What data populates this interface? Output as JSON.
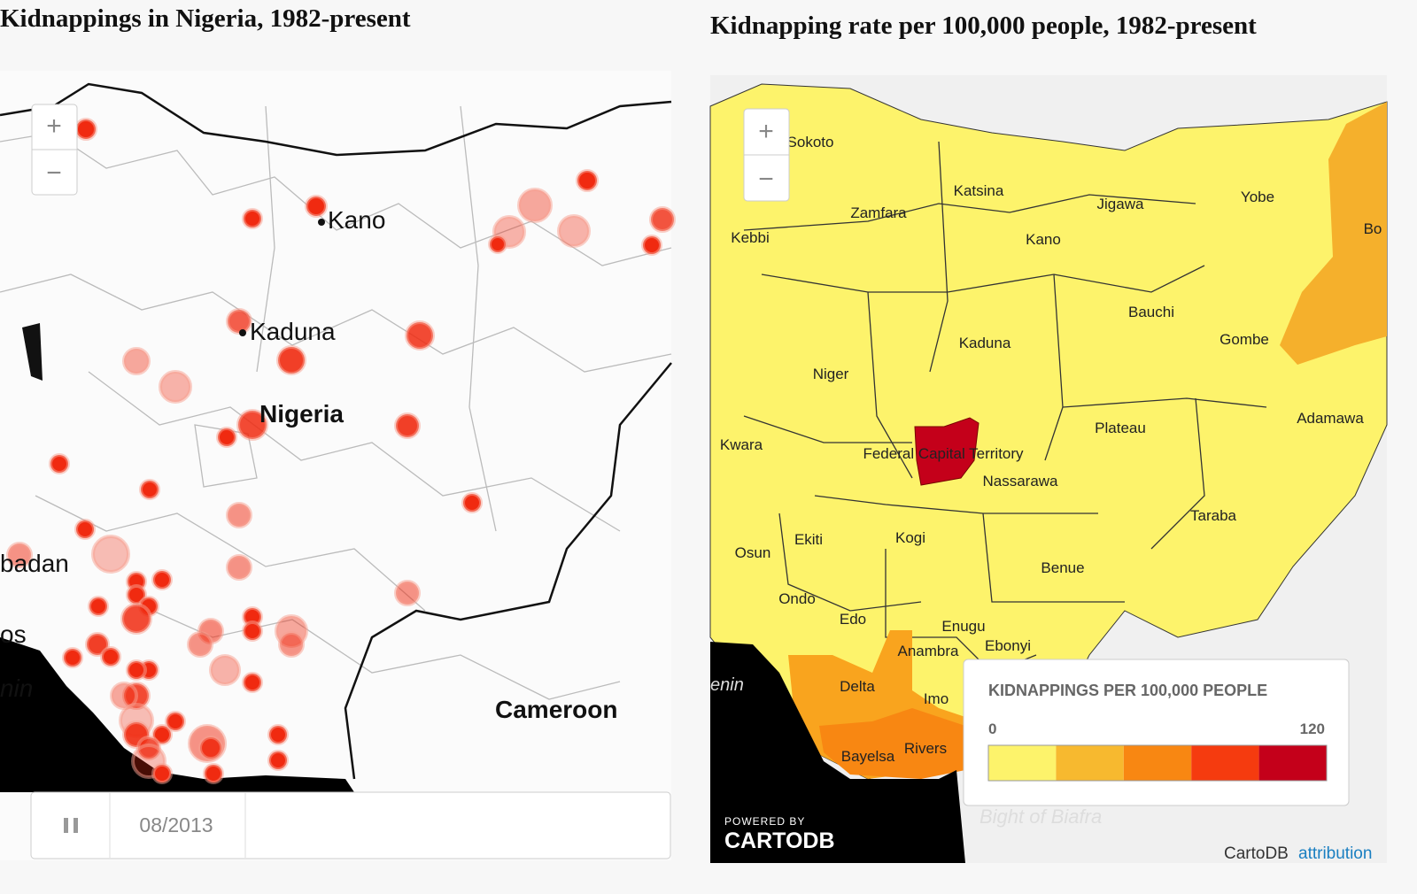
{
  "left_map": {
    "title": "Kidnappings in Nigeria, 1982-present",
    "places": [
      "Kano",
      "Kaduna",
      "Nigeria",
      "badan",
      "os",
      "nin",
      "Cameroon"
    ],
    "zoom_in": "+",
    "zoom_out": "−",
    "date": "08/2013"
  },
  "right_map": {
    "title": "Kidnapping rate per 100,000 people, 1982-present",
    "states": [
      "Sokoto",
      "Katsina",
      "Zamfara",
      "Jigawa",
      "Yobe",
      "Kebbi",
      "Kano",
      "Bo",
      "Bauchi",
      "Gombe",
      "Kaduna",
      "Niger",
      "Adamawa",
      "Plateau",
      "Kwara",
      "Federal Capital Territory",
      "Nassarawa",
      "Taraba",
      "Ekiti",
      "Kogi",
      "Osun",
      "Benue",
      "Ondo",
      "Edo",
      "Enugu",
      "Anambra",
      "Ebonyi",
      "Delta",
      "Imo",
      "Bayelsa",
      "Rivers"
    ],
    "sea_labels": [
      "enin",
      "Bight of Biafra"
    ],
    "zoom_in": "+",
    "zoom_out": "−",
    "legend": {
      "title": "KIDNAPPINGS PER 100,000 PEOPLE",
      "min": 0,
      "max": 120,
      "colors": [
        "#fdf36b",
        "#f7b92f",
        "#f88712",
        "#f53b0f",
        "#c4001a"
      ]
    },
    "powered_by": "POWERED BY",
    "logo": "CARTODB",
    "attribution_owner": "CartoDB",
    "attribution_link": "attribution"
  }
}
